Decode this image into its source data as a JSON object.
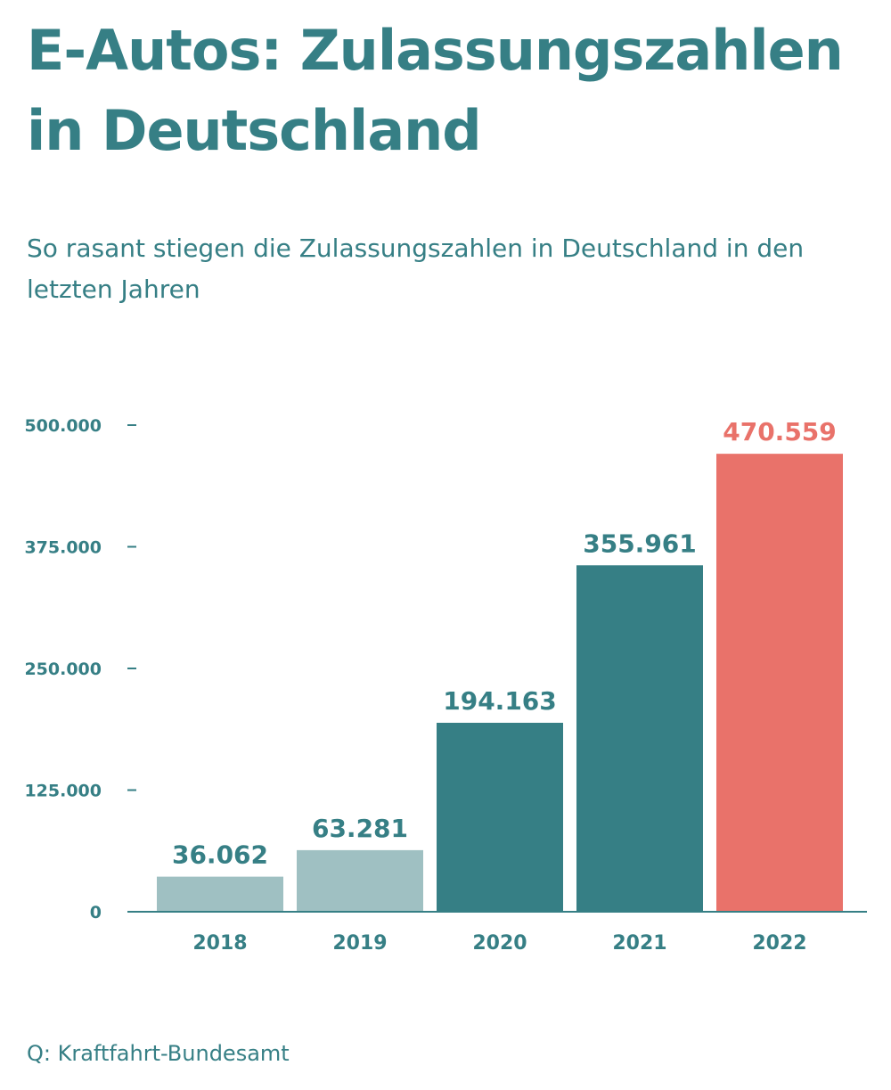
{
  "title": "E-Autos: Zulassungszahlen in Deutschland",
  "subtitle": "So rasant stiegen die Zulassungszahlen in Deutschland in den letzten Jahren",
  "source": "Q: Kraftfahrt-Bundesamt",
  "colors": {
    "primary": "#367f85",
    "light": "#9fc0c2",
    "highlight": "#e9726a"
  },
  "chart_data": {
    "type": "bar",
    "title": "E-Autos: Zulassungszahlen in Deutschland",
    "subtitle": "So rasant stiegen die Zulassungszahlen in Deutschland in den letzten Jahren",
    "xlabel": "",
    "ylabel": "",
    "categories": [
      "2018",
      "2019",
      "2020",
      "2021",
      "2022"
    ],
    "values": [
      36062,
      63281,
      194163,
      355961,
      470559
    ],
    "value_labels": [
      "36.062",
      "63.281",
      "194.163",
      "355.961",
      "470.559"
    ],
    "bar_colors": [
      "#9fc0c2",
      "#9fc0c2",
      "#367f85",
      "#367f85",
      "#e9726a"
    ],
    "label_colors": [
      "#367f85",
      "#367f85",
      "#367f85",
      "#367f85",
      "#e9726a"
    ],
    "ylim": [
      0,
      500000
    ],
    "yticks": [
      0,
      125000,
      250000,
      375000,
      500000
    ],
    "ytick_labels": [
      "0",
      "125.000",
      "250.000",
      "375.000",
      "500.000"
    ],
    "grid": false,
    "legend": "none"
  }
}
